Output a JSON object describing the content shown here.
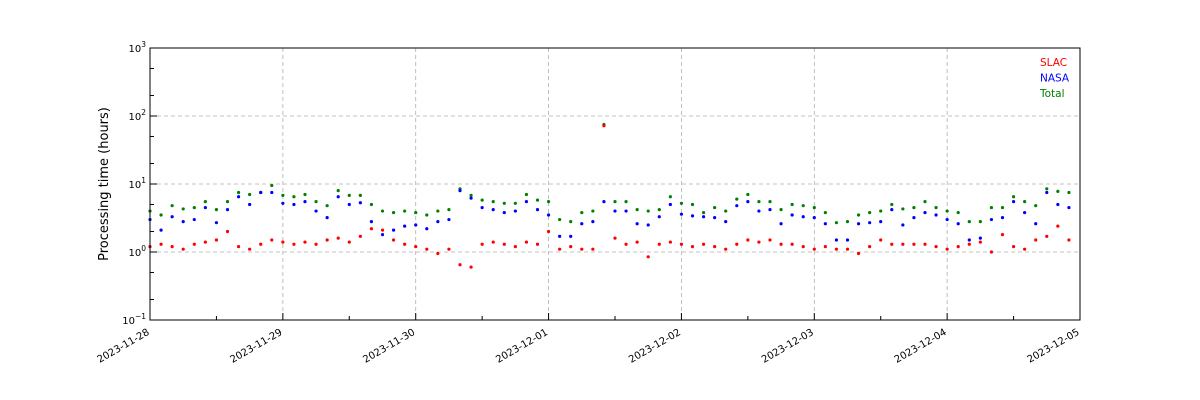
{
  "chart_data": {
    "type": "scatter",
    "title": "",
    "xlabel": "",
    "ylabel": "Processing time (hours)",
    "yscale": "log",
    "ylim": [
      0.1,
      1000
    ],
    "xlim": [
      "2023-11-28T00:00",
      "2023-12-05T00:00"
    ],
    "grid": true,
    "legend_position": "top-right",
    "x_ticks": [
      "2023-11-28",
      "2023-11-29",
      "2023-11-30",
      "2023-12-01",
      "2023-12-02",
      "2023-12-03",
      "2023-12-04",
      "2023-12-05"
    ],
    "y_ticks": [
      {
        "value": 0.1,
        "base": "10",
        "exp": "−1"
      },
      {
        "value": 1,
        "base": "10",
        "exp": "0"
      },
      {
        "value": 10,
        "base": "10",
        "exp": "1"
      },
      {
        "value": 100,
        "base": "10",
        "exp": "2"
      },
      {
        "value": 1000,
        "base": "10",
        "exp": "3"
      }
    ],
    "x": [
      "2023-11-28T00:00",
      "2023-11-28T02:00",
      "2023-11-28T04:00",
      "2023-11-28T06:00",
      "2023-11-28T08:00",
      "2023-11-28T10:00",
      "2023-11-28T12:00",
      "2023-11-28T14:00",
      "2023-11-28T16:00",
      "2023-11-28T18:00",
      "2023-11-28T20:00",
      "2023-11-28T22:00",
      "2023-11-29T00:00",
      "2023-11-29T02:00",
      "2023-11-29T04:00",
      "2023-11-29T06:00",
      "2023-11-29T08:00",
      "2023-11-29T10:00",
      "2023-11-29T12:00",
      "2023-11-29T14:00",
      "2023-11-29T16:00",
      "2023-11-29T18:00",
      "2023-11-29T20:00",
      "2023-11-29T22:00",
      "2023-11-30T00:00",
      "2023-11-30T02:00",
      "2023-11-30T04:00",
      "2023-11-30T06:00",
      "2023-11-30T08:00",
      "2023-11-30T10:00",
      "2023-11-30T12:00",
      "2023-11-30T14:00",
      "2023-11-30T16:00",
      "2023-11-30T18:00",
      "2023-11-30T20:00",
      "2023-11-30T22:00",
      "2023-12-01T00:00",
      "2023-12-01T02:00",
      "2023-12-01T04:00",
      "2023-12-01T06:00",
      "2023-12-01T08:00",
      "2023-12-01T10:00",
      "2023-12-01T12:00",
      "2023-12-01T14:00",
      "2023-12-01T16:00",
      "2023-12-01T18:00",
      "2023-12-01T20:00",
      "2023-12-01T22:00",
      "2023-12-02T00:00",
      "2023-12-02T02:00",
      "2023-12-02T04:00",
      "2023-12-02T06:00",
      "2023-12-02T08:00",
      "2023-12-02T10:00",
      "2023-12-02T12:00",
      "2023-12-02T14:00",
      "2023-12-02T16:00",
      "2023-12-02T18:00",
      "2023-12-02T20:00",
      "2023-12-02T22:00",
      "2023-12-03T00:00",
      "2023-12-03T02:00",
      "2023-12-03T04:00",
      "2023-12-03T06:00",
      "2023-12-03T08:00",
      "2023-12-03T10:00",
      "2023-12-03T12:00",
      "2023-12-03T14:00",
      "2023-12-03T16:00",
      "2023-12-03T18:00",
      "2023-12-03T20:00",
      "2023-12-03T22:00",
      "2023-12-04T00:00",
      "2023-12-04T02:00",
      "2023-12-04T04:00",
      "2023-12-04T06:00",
      "2023-12-04T08:00",
      "2023-12-04T10:00",
      "2023-12-04T12:00",
      "2023-12-04T14:00",
      "2023-12-04T16:00",
      "2023-12-04T18:00",
      "2023-12-04T20:00",
      "2023-12-04T22:00"
    ],
    "series": [
      {
        "name": "SLAC",
        "color": "#ff0000",
        "values": [
          1.2,
          1.3,
          1.2,
          1.1,
          1.3,
          1.4,
          1.5,
          2.0,
          1.2,
          1.1,
          1.3,
          1.5,
          1.4,
          1.3,
          1.4,
          1.3,
          1.5,
          1.6,
          1.4,
          1.7,
          2.2,
          2.1,
          1.5,
          1.3,
          1.2,
          1.1,
          0.95,
          1.1,
          0.65,
          0.6,
          1.3,
          1.4,
          1.3,
          1.2,
          1.4,
          1.3,
          2.0,
          1.1,
          1.2,
          1.1,
          1.1,
          72,
          1.6,
          1.3,
          1.4,
          0.85,
          1.3,
          1.4,
          1.3,
          1.2,
          1.3,
          1.2,
          1.1,
          1.3,
          1.5,
          1.4,
          1.5,
          1.3,
          1.3,
          1.2,
          1.1,
          1.2,
          1.1,
          1.1,
          0.95,
          1.2,
          1.5,
          1.3,
          1.3,
          1.3,
          1.3,
          1.2,
          1.1,
          1.2,
          1.3,
          1.4,
          1.0,
          1.8,
          1.2,
          1.1,
          1.5,
          1.7,
          2.4,
          1.5
        ]
      },
      {
        "name": "NASA",
        "color": "#0000ff",
        "values": [
          3.0,
          2.1,
          3.3,
          2.8,
          3.0,
          4.5,
          2.7,
          4.2,
          6.5,
          5.0,
          7.5,
          7.5,
          5.2,
          5.0,
          5.5,
          4.0,
          3.2,
          6.5,
          5.0,
          5.3,
          2.8,
          1.8,
          2.1,
          2.4,
          2.5,
          2.2,
          2.8,
          3.0,
          8.0,
          6.2,
          4.5,
          4.2,
          3.8,
          4.0,
          5.5,
          4.2,
          3.5,
          1.7,
          1.7,
          2.6,
          2.8,
          5.5,
          4.0,
          4.0,
          2.6,
          2.5,
          3.3,
          5.0,
          3.6,
          3.4,
          3.3,
          3.2,
          2.8,
          4.8,
          5.5,
          4.0,
          4.2,
          2.6,
          3.5,
          3.3,
          3.2,
          2.6,
          1.5,
          1.5,
          2.6,
          2.7,
          2.8,
          4.2,
          2.5,
          3.2,
          3.8,
          3.5,
          3.0,
          2.6,
          1.5,
          1.6,
          3.0,
          3.2,
          5.5,
          3.8,
          2.6,
          7.5,
          5.0,
          4.5
        ]
      },
      {
        "name": "Total",
        "color": "#008000",
        "values": [
          4.0,
          3.5,
          4.8,
          4.3,
          4.5,
          5.5,
          4.2,
          5.5,
          7.5,
          7.0,
          7.5,
          9.5,
          6.8,
          6.5,
          7.0,
          5.5,
          4.8,
          8.0,
          6.8,
          6.8,
          5.0,
          4.0,
          3.8,
          4.0,
          3.8,
          3.5,
          4.0,
          4.2,
          8.5,
          6.8,
          5.8,
          5.5,
          5.2,
          5.2,
          7.0,
          5.8,
          5.5,
          3.0,
          2.8,
          3.8,
          4.0,
          75,
          5.5,
          5.5,
          4.2,
          4.0,
          4.2,
          6.5,
          5.2,
          5.0,
          3.8,
          4.5,
          4.0,
          6.0,
          7.0,
          5.5,
          5.5,
          4.2,
          5.0,
          4.8,
          4.5,
          3.8,
          2.7,
          2.8,
          3.5,
          3.8,
          4.0,
          5.0,
          4.3,
          4.5,
          5.5,
          4.5,
          4.0,
          3.8,
          2.8,
          2.8,
          4.5,
          4.5,
          6.5,
          5.5,
          4.8,
          8.5,
          7.8,
          7.5
        ]
      }
    ]
  }
}
